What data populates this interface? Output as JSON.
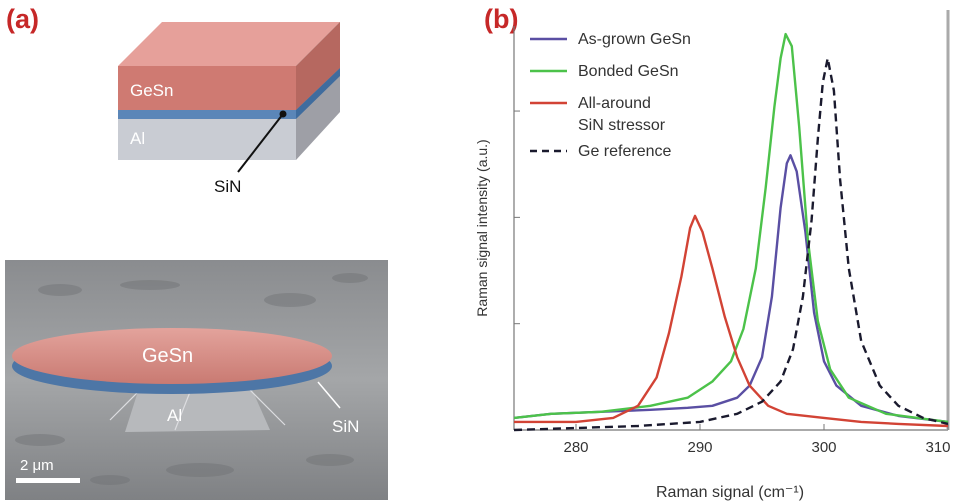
{
  "panel_a": {
    "label": "(a)",
    "schematic": {
      "layer_top": "GeSn",
      "layer_bottom": "Al",
      "layer_thin": "SiN",
      "colors": {
        "gesn": "#cf7a72",
        "sin": "#5b86b8",
        "al": "#c9ccd3"
      }
    },
    "sem": {
      "disk_label": "GeSn",
      "support_label": "Al",
      "coating_label": "SiN",
      "scale_bar": "2 μm"
    }
  },
  "panel_b": {
    "label": "(b)",
    "chart_data": {
      "type": "line",
      "xlabel": "Raman signal (cm⁻¹)",
      "ylabel": "Raman signal intensity (a.u.)",
      "xlim": [
        275,
        310
      ],
      "ylim": [
        0,
        1.0
      ],
      "xticks": [
        "280",
        "290",
        "300",
        "310"
      ],
      "legend_position": "top-left",
      "series": [
        {
          "name": "As-grown GeSn",
          "color": "#5a4fa3",
          "dash": "solid",
          "x": [
            275,
            278,
            282,
            286,
            289,
            291,
            293,
            294,
            295,
            295.8,
            296.5,
            297,
            297.3,
            297.8,
            298.5,
            299.2,
            300,
            301,
            303,
            306,
            310
          ],
          "y": [
            0.03,
            0.04,
            0.045,
            0.05,
            0.055,
            0.06,
            0.08,
            0.11,
            0.18,
            0.33,
            0.55,
            0.66,
            0.68,
            0.64,
            0.49,
            0.29,
            0.17,
            0.11,
            0.06,
            0.035,
            0.02
          ]
        },
        {
          "name": "Bonded GeSn",
          "color": "#4cc24a",
          "dash": "solid",
          "x": [
            275,
            278,
            282,
            286,
            289,
            291,
            292.5,
            293.5,
            294.5,
            295.3,
            296,
            296.5,
            296.9,
            297.4,
            298,
            298.7,
            299.5,
            300.5,
            302,
            305,
            310
          ],
          "y": [
            0.03,
            0.04,
            0.045,
            0.06,
            0.08,
            0.12,
            0.17,
            0.25,
            0.4,
            0.6,
            0.8,
            0.92,
            0.98,
            0.95,
            0.75,
            0.47,
            0.27,
            0.15,
            0.08,
            0.04,
            0.02
          ]
        },
        {
          "name": "All-around\nSiN stressor",
          "color": "#d24335",
          "dash": "solid",
          "x": [
            275,
            280,
            283,
            285,
            286.5,
            287.5,
            288.5,
            289.2,
            289.6,
            290.2,
            291,
            292,
            293,
            294,
            295.5,
            297,
            300,
            303,
            306,
            310
          ],
          "y": [
            0.02,
            0.02,
            0.03,
            0.06,
            0.13,
            0.24,
            0.38,
            0.5,
            0.53,
            0.49,
            0.4,
            0.28,
            0.18,
            0.11,
            0.06,
            0.04,
            0.03,
            0.02,
            0.015,
            0.01
          ]
        },
        {
          "name": "Ge reference",
          "color": "#1a1a2e",
          "dash": "dashed",
          "x": [
            275,
            280,
            285,
            290,
            293,
            295,
            296.5,
            297.5,
            298.3,
            299,
            299.5,
            299.9,
            300.3,
            300.8,
            301.3,
            302,
            303,
            304.5,
            306,
            308,
            310
          ],
          "y": [
            0.0,
            0.005,
            0.01,
            0.02,
            0.04,
            0.07,
            0.12,
            0.2,
            0.33,
            0.52,
            0.72,
            0.86,
            0.92,
            0.84,
            0.62,
            0.4,
            0.22,
            0.11,
            0.06,
            0.03,
            0.015
          ]
        }
      ]
    }
  }
}
